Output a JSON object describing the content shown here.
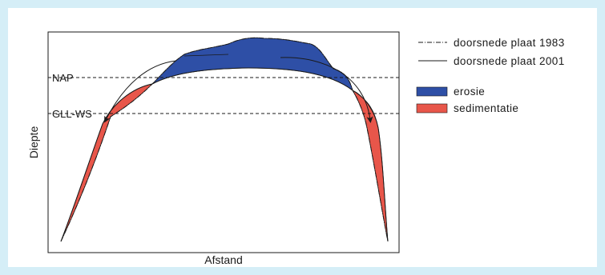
{
  "diagram": {
    "y_label": "Diepte",
    "x_label": "Afstand",
    "levels": {
      "upper": "NAP",
      "lower": "GLL-WS"
    },
    "legend": {
      "line_1983": "doorsnede plaat 1983",
      "line_2001": "doorsnede plaat 2001",
      "erosion": "erosie",
      "sedimentation": "sedimentatie"
    },
    "colors": {
      "background": "#d5eef7",
      "erosion": "#2e4fa6",
      "sedimentation": "#e8564a",
      "line": "#1a1a1a"
    }
  }
}
